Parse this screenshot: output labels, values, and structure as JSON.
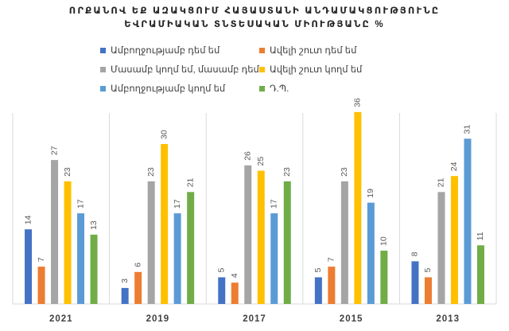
{
  "chart_data": {
    "type": "bar",
    "title": [
      "ՈՐՔԱՆՈՎ ԵՔ ԱԶԱԿՑՈՒՄ ՀԱՅԱՍՏԱՆԻ ԱՆԴԱՄԱԿՑՈՒԹՅՈՒՆԸ",
      "ԵՎՐԱՄԻԱԿԱՆ ՏՆՏԵՍԱԿԱՆ ՄԻՈՒԹՅԱՆԸ %"
    ],
    "categories": [
      "2021",
      "2019",
      "2017",
      "2015",
      "2013"
    ],
    "series": [
      {
        "name": "Ամբողջությամբ դեմ եմ",
        "color": "#4472c4",
        "values": [
          14,
          3,
          5,
          5,
          8
        ]
      },
      {
        "name": "Ավելի շուտ դեմ եմ",
        "color": "#ed7d31",
        "values": [
          7,
          6,
          4,
          7,
          5
        ]
      },
      {
        "name": "Մասամբ կողմ եմ, մասամբ դեմ",
        "color": "#a5a5a5",
        "values": [
          27,
          23,
          26,
          23,
          21
        ]
      },
      {
        "name": "Ավելի շուտ կողմ եմ",
        "color": "#ffc000",
        "values": [
          23,
          30,
          25,
          36,
          24
        ]
      },
      {
        "name": "Ամբողջությամբ կողմ եմ",
        "color": "#5b9bd5",
        "values": [
          17,
          17,
          17,
          19,
          31
        ]
      },
      {
        "name": "Դ.Պ.",
        "color": "#70ad47",
        "values": [
          13,
          21,
          23,
          10,
          11
        ]
      }
    ],
    "ylim": [
      0,
      40
    ],
    "grid": "vertical separators between year groups",
    "legend_position": "top"
  }
}
